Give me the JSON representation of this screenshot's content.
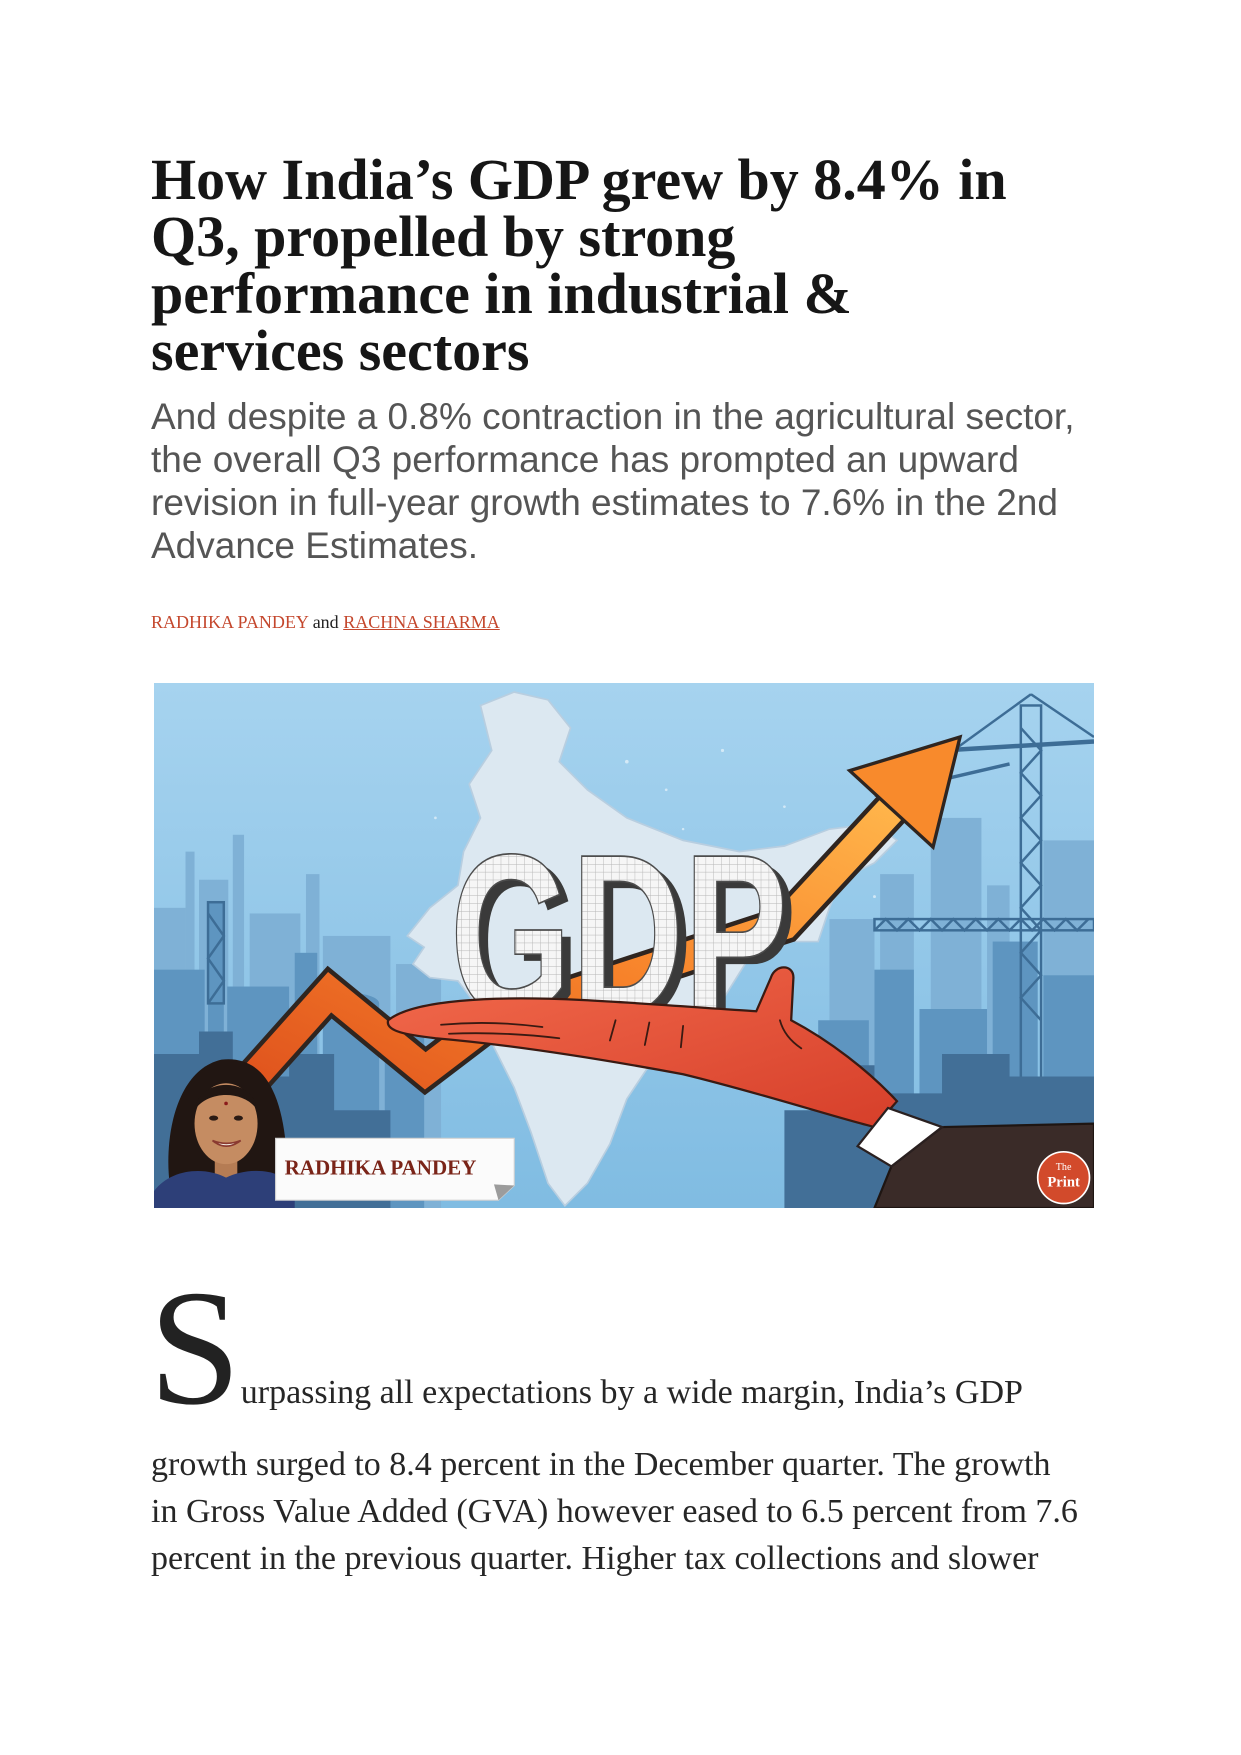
{
  "article": {
    "title": "How India’s GDP grew by 8.4% in Q3, propelled by strong performance in industrial & services sectors",
    "subtitle": "And despite a 0.8% contraction in the agricultural sector, the overall Q3 performance has prompted an upward revision in full-year growth estimates to 7.6% in the 2nd Advance Estimates.",
    "byline": {
      "authors": [
        "RADHIKA PANDEY",
        "RACHNA SHARMA"
      ],
      "joiner": "and"
    },
    "hero": {
      "word": "GDP",
      "label": "RADHIKA PANDEY",
      "logo": {
        "line1": "The",
        "line2": "Print"
      }
    },
    "body": {
      "drop_cap": "S",
      "first_line": "urpassing all expectations by a wide margin, India’s GDP",
      "lines": [
        "growth surged to 8.4 percent in the December quarter. The growth",
        "in Gross Value Added (GVA) however eased to 6.5 percent from 7.6",
        "percent in the previous quarter. Higher tax collections and slower"
      ]
    }
  },
  "colors": {
    "title": "#161616",
    "subtitle": "#555555",
    "byline_link": "#c4472d",
    "body": "#262626",
    "arrow_orange": "#f57a22",
    "sky_blue": "#8ec6e8"
  }
}
